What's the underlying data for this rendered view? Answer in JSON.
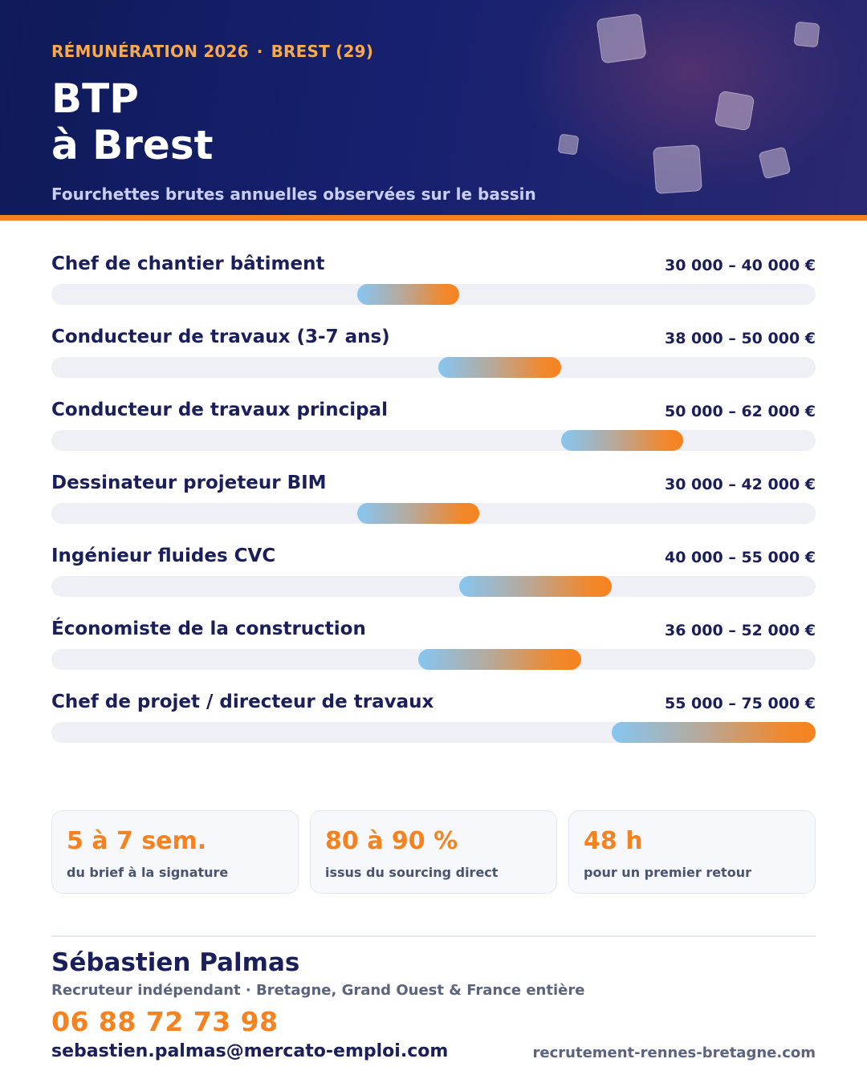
{
  "header": {
    "eyebrow_left": "RÉMUNÉRATION 2026",
    "eyebrow_separator": "·",
    "eyebrow_right": "BREST (29)",
    "title_line1": "BTP",
    "title_line2": "à Brest",
    "subtitle": "Fourchettes brutes annuelles observées sur le bassin"
  },
  "scale": {
    "min": 0,
    "max": 75000
  },
  "salaries": [
    {
      "label": "Chef de chantier bâtiment",
      "range": "30 000 – 40 000 €",
      "min": 30000,
      "max": 40000
    },
    {
      "label": "Conducteur de travaux (3-7 ans)",
      "range": "38 000 – 50 000 €",
      "min": 38000,
      "max": 50000
    },
    {
      "label": "Conducteur de travaux principal",
      "range": "50 000 – 62 000 €",
      "min": 50000,
      "max": 62000
    },
    {
      "label": "Dessinateur projeteur BIM",
      "range": "30 000 – 42 000 €",
      "min": 30000,
      "max": 42000
    },
    {
      "label": "Ingénieur fluides CVC",
      "range": "40 000 – 55 000 €",
      "min": 40000,
      "max": 55000
    },
    {
      "label": "Économiste de la construction",
      "range": "36 000 – 52 000 €",
      "min": 36000,
      "max": 52000
    },
    {
      "label": "Chef de projet / directeur de travaux",
      "range": "55 000 – 75 000 €",
      "min": 55000,
      "max": 75000
    }
  ],
  "stats": [
    {
      "value": "5 à 7 sem.",
      "caption": "du brief à la signature"
    },
    {
      "value": "80 à 90 %",
      "caption": "issus du sourcing direct"
    },
    {
      "value": "48 h",
      "caption": "pour un premier retour"
    }
  ],
  "contact": {
    "name": "Sébastien Palmas",
    "role": "Recruteur indépendant · Bretagne, Grand Ouest & France entière",
    "phone": "06 88 72 73 98",
    "email": "sebastien.palmas@mercato-emploi.com",
    "website": "recrutement-rennes-bretagne.com"
  },
  "colors": {
    "navy": "#1a1f5c",
    "accent_orange": "#f6821f",
    "bar_start_blue": "#86c6f2",
    "track": "#eef0f6"
  }
}
